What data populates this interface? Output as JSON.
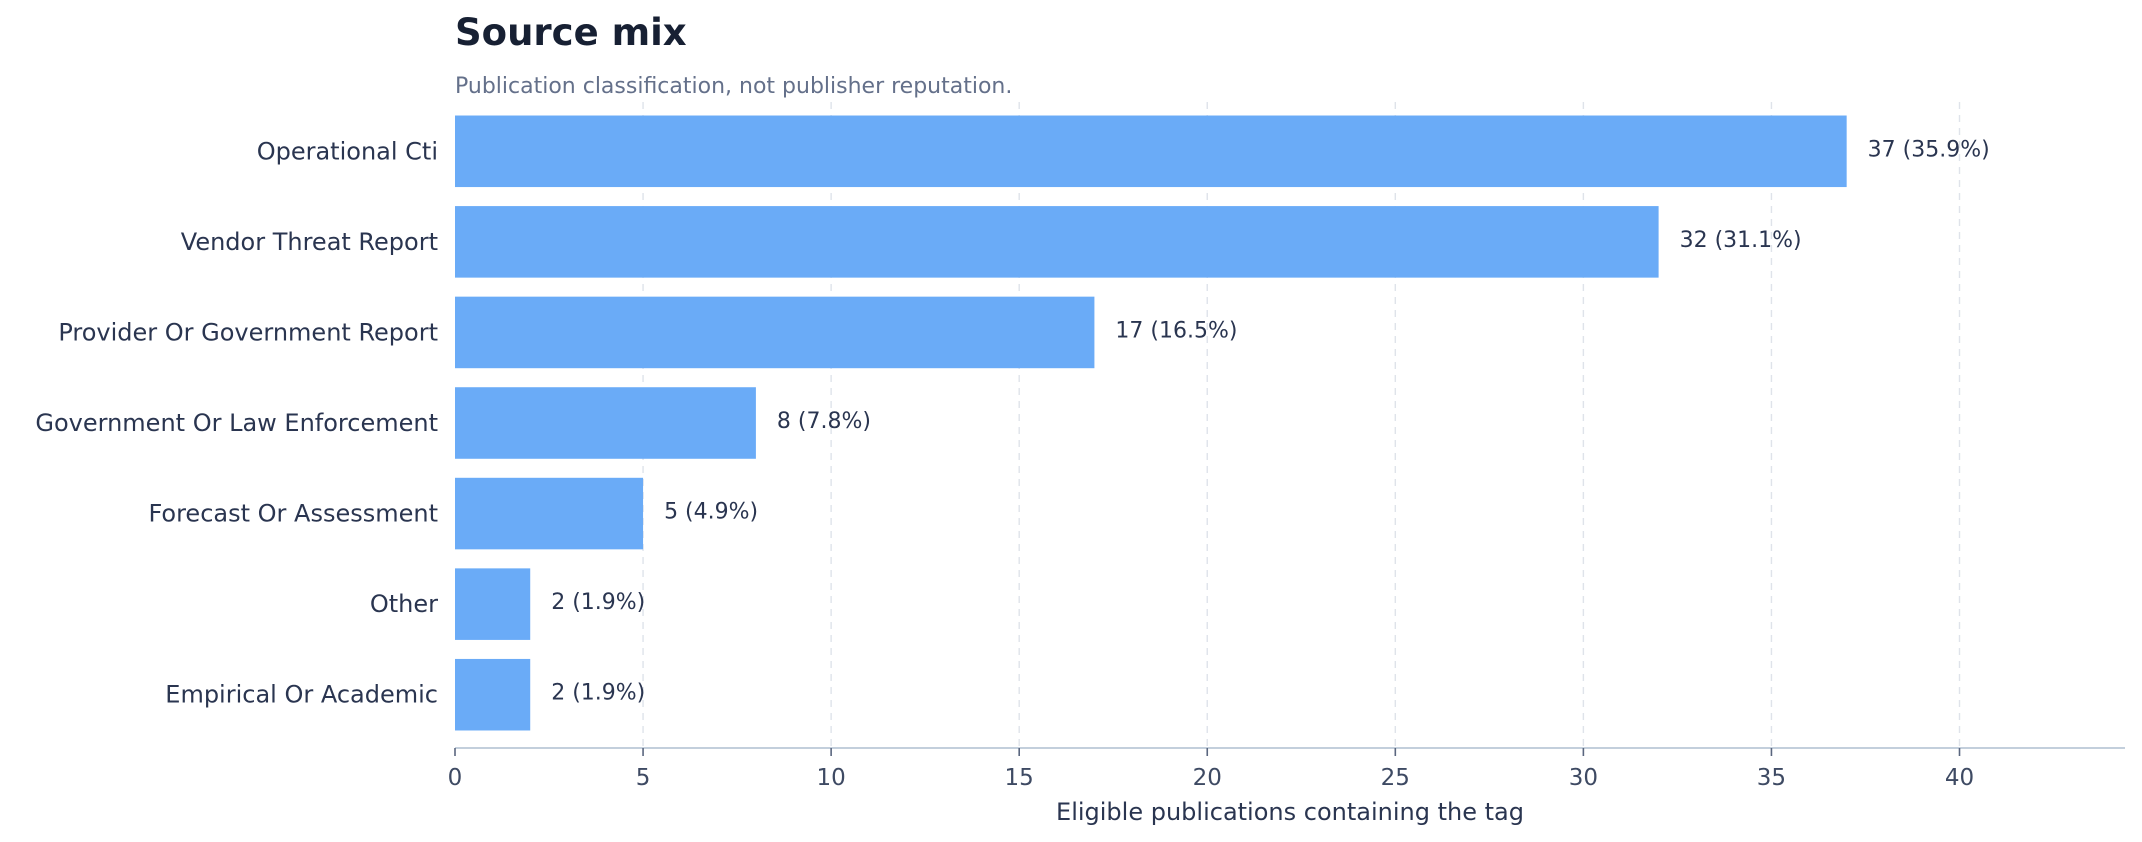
{
  "chart_data": {
    "type": "bar",
    "orientation": "horizontal",
    "title": "Source mix",
    "subtitle": "Publication classification, not publisher reputation.",
    "xlabel": "Eligible publications containing the tag",
    "ylabel": "",
    "categories": [
      "Operational Cti",
      "Vendor Threat Report",
      "Provider Or Government Report",
      "Government Or Law Enforcement",
      "Forecast Or Assessment",
      "Other",
      "Empirical Or Academic"
    ],
    "values": [
      37,
      32,
      17,
      8,
      5,
      2,
      2
    ],
    "data_labels": [
      "37  (35.9%)",
      "32  (31.1%)",
      "17  (16.5%)",
      "8  (7.8%)",
      "5  (4.9%)",
      "2  (1.9%)",
      "2  (1.9%)"
    ],
    "xlim": [
      0,
      44.4
    ],
    "xticks": [
      0,
      5,
      10,
      15,
      20,
      25,
      30,
      35,
      40
    ],
    "grid": "vertical dashed",
    "legend": "none",
    "bar_color": "#6aabf7"
  }
}
